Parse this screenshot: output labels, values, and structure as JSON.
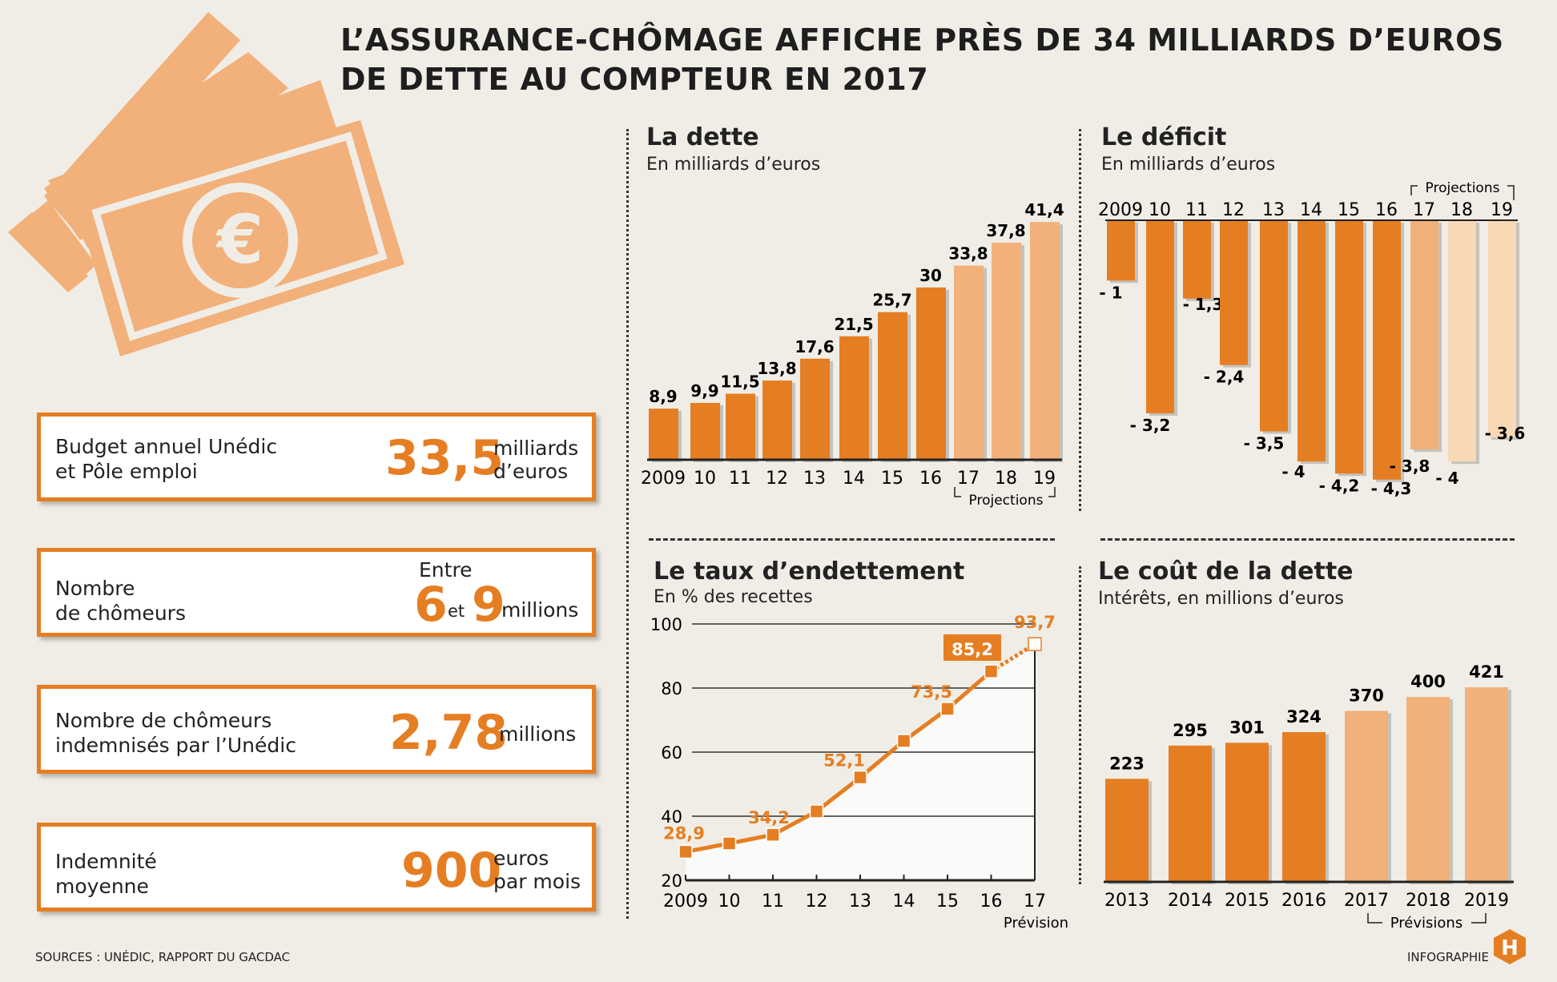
{
  "title": {
    "line1": "L’ASSURANCE-CHÔMAGE AFFICHE PRÈS DE 34 MILLIARDS D’EUROS",
    "line2": "DE DETTE AU COMPTEUR EN 2017"
  },
  "colors": {
    "actual": "#E57E22",
    "projection": "#F2B07A",
    "projection_light": "#F9D8B5",
    "background": "#F0EDE6"
  },
  "illustration": {
    "icon": "euro-banknotes-icon",
    "symbol": "€"
  },
  "kpis": [
    {
      "label1": "Budget annuel Unédic",
      "label2": "et Pôle emploi",
      "value": "33,5",
      "unit1": "milliards",
      "unit2": "d’euros"
    },
    {
      "label1": "Nombre",
      "label2": "de chômeurs",
      "pre": "Entre",
      "value_a": "6",
      "mid": "et",
      "value_b": "9",
      "unit1": "millions"
    },
    {
      "label1": "Nombre de chômeurs",
      "label2": "indemnisés par l’Unédic",
      "value": "2,78",
      "unit1": "millions"
    },
    {
      "label1": "Indemnité",
      "label2": "moyenne",
      "value": "900",
      "unit1": "euros",
      "unit2": "par mois"
    }
  ],
  "footer": {
    "sources": "SOURCES : UNÉDIC, RAPPORT DU GACDAC",
    "credit": "INFOGRAPHIE",
    "logo": "H"
  },
  "chart_data": [
    {
      "type": "bar",
      "title": "La dette",
      "subtitle": "En milliards d’euros",
      "categories": [
        "2009",
        "10",
        "11",
        "12",
        "13",
        "14",
        "15",
        "16",
        "17",
        "18",
        "19"
      ],
      "values": [
        8.9,
        9.9,
        11.5,
        13.8,
        17.6,
        21.5,
        25.7,
        30,
        33.8,
        37.8,
        41.4
      ],
      "labels": [
        "8,9",
        "9,9",
        "11,5",
        "13,8",
        "17,6",
        "21,5",
        "25,7",
        "30",
        "33,8",
        "37,8",
        "41,4"
      ],
      "projection_from": "17",
      "projection_label": "Projections"
    },
    {
      "type": "bar",
      "title": "Le déficit",
      "subtitle": "En milliards d’euros",
      "categories": [
        "2009",
        "10",
        "11",
        "12",
        "13",
        "14",
        "15",
        "16",
        "17",
        "18",
        "19"
      ],
      "values": [
        -1,
        -3.2,
        -1.3,
        -2.4,
        -3.5,
        -4,
        -4.2,
        -4.3,
        -3.8,
        -4,
        -3.6
      ],
      "labels": [
        "- 1",
        "- 3,2",
        "- 1,3",
        "- 2,4",
        "- 3,5",
        "- 4",
        "- 4,2",
        "- 4,3",
        "- 3,8",
        "- 4",
        "- 3,6"
      ],
      "projection_from": "17",
      "projection_label": "Projections"
    },
    {
      "type": "line",
      "title": "Le taux d’endettement",
      "subtitle": "En % des recettes",
      "categories": [
        "2009",
        "10",
        "11",
        "12",
        "13",
        "14",
        "15",
        "16",
        "17"
      ],
      "values": [
        28.9,
        31.5,
        34.2,
        41.5,
        52.1,
        63.5,
        73.5,
        85.2,
        93.7
      ],
      "labels": {
        "0": "28,9",
        "2": "34,2",
        "4": "52,1",
        "6": "73,5",
        "7": "85,2",
        "8": "93,7"
      },
      "ylim": [
        20,
        100
      ],
      "yticks": [
        "20",
        "40",
        "60",
        "80",
        "100"
      ],
      "grid": true,
      "forecast_label": "Prévision"
    },
    {
      "type": "bar",
      "title": "Le coût de la dette",
      "subtitle": "Intérêts, en millions d’euros",
      "categories": [
        "2013",
        "2014",
        "2015",
        "2016",
        "2017",
        "2018",
        "2019"
      ],
      "values": [
        223,
        295,
        301,
        324,
        370,
        400,
        421
      ],
      "labels": [
        "223",
        "295",
        "301",
        "324",
        "370",
        "400",
        "421"
      ],
      "projection_from": "2017",
      "projection_label": "Prévisions"
    }
  ]
}
